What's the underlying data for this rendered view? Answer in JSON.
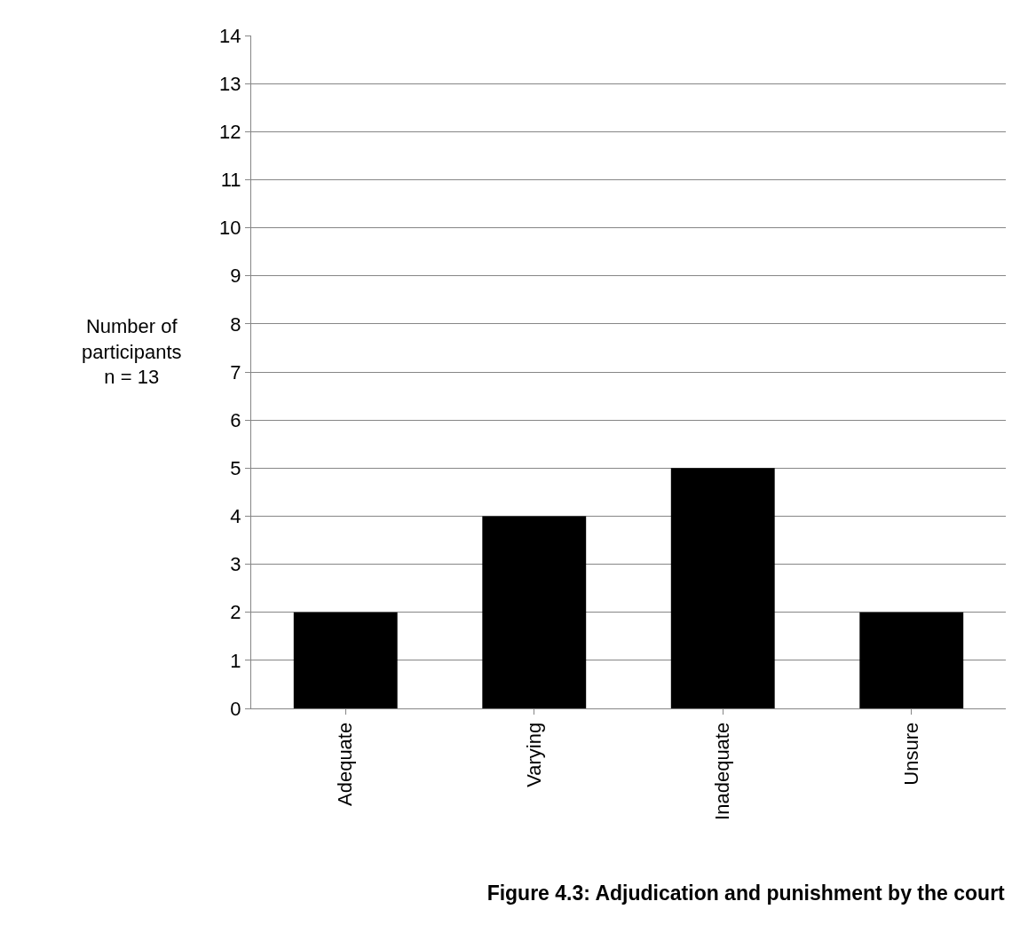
{
  "chart_data": {
    "type": "bar",
    "title": "Figure 4.3: Adjudication and punishment by the court",
    "ylabel": "Number of\nparticipants\nn = 13",
    "categories": [
      "Adequate",
      "Varying",
      "Inadequate",
      "Unsure"
    ],
    "values": [
      2,
      4,
      5,
      2
    ],
    "color": "#000000",
    "ylim": [
      0,
      14
    ],
    "yticks": [
      0,
      1,
      2,
      3,
      4,
      5,
      6,
      7,
      8,
      9,
      10,
      11,
      12,
      13,
      14
    ],
    "grid": "y",
    "legend": false
  }
}
